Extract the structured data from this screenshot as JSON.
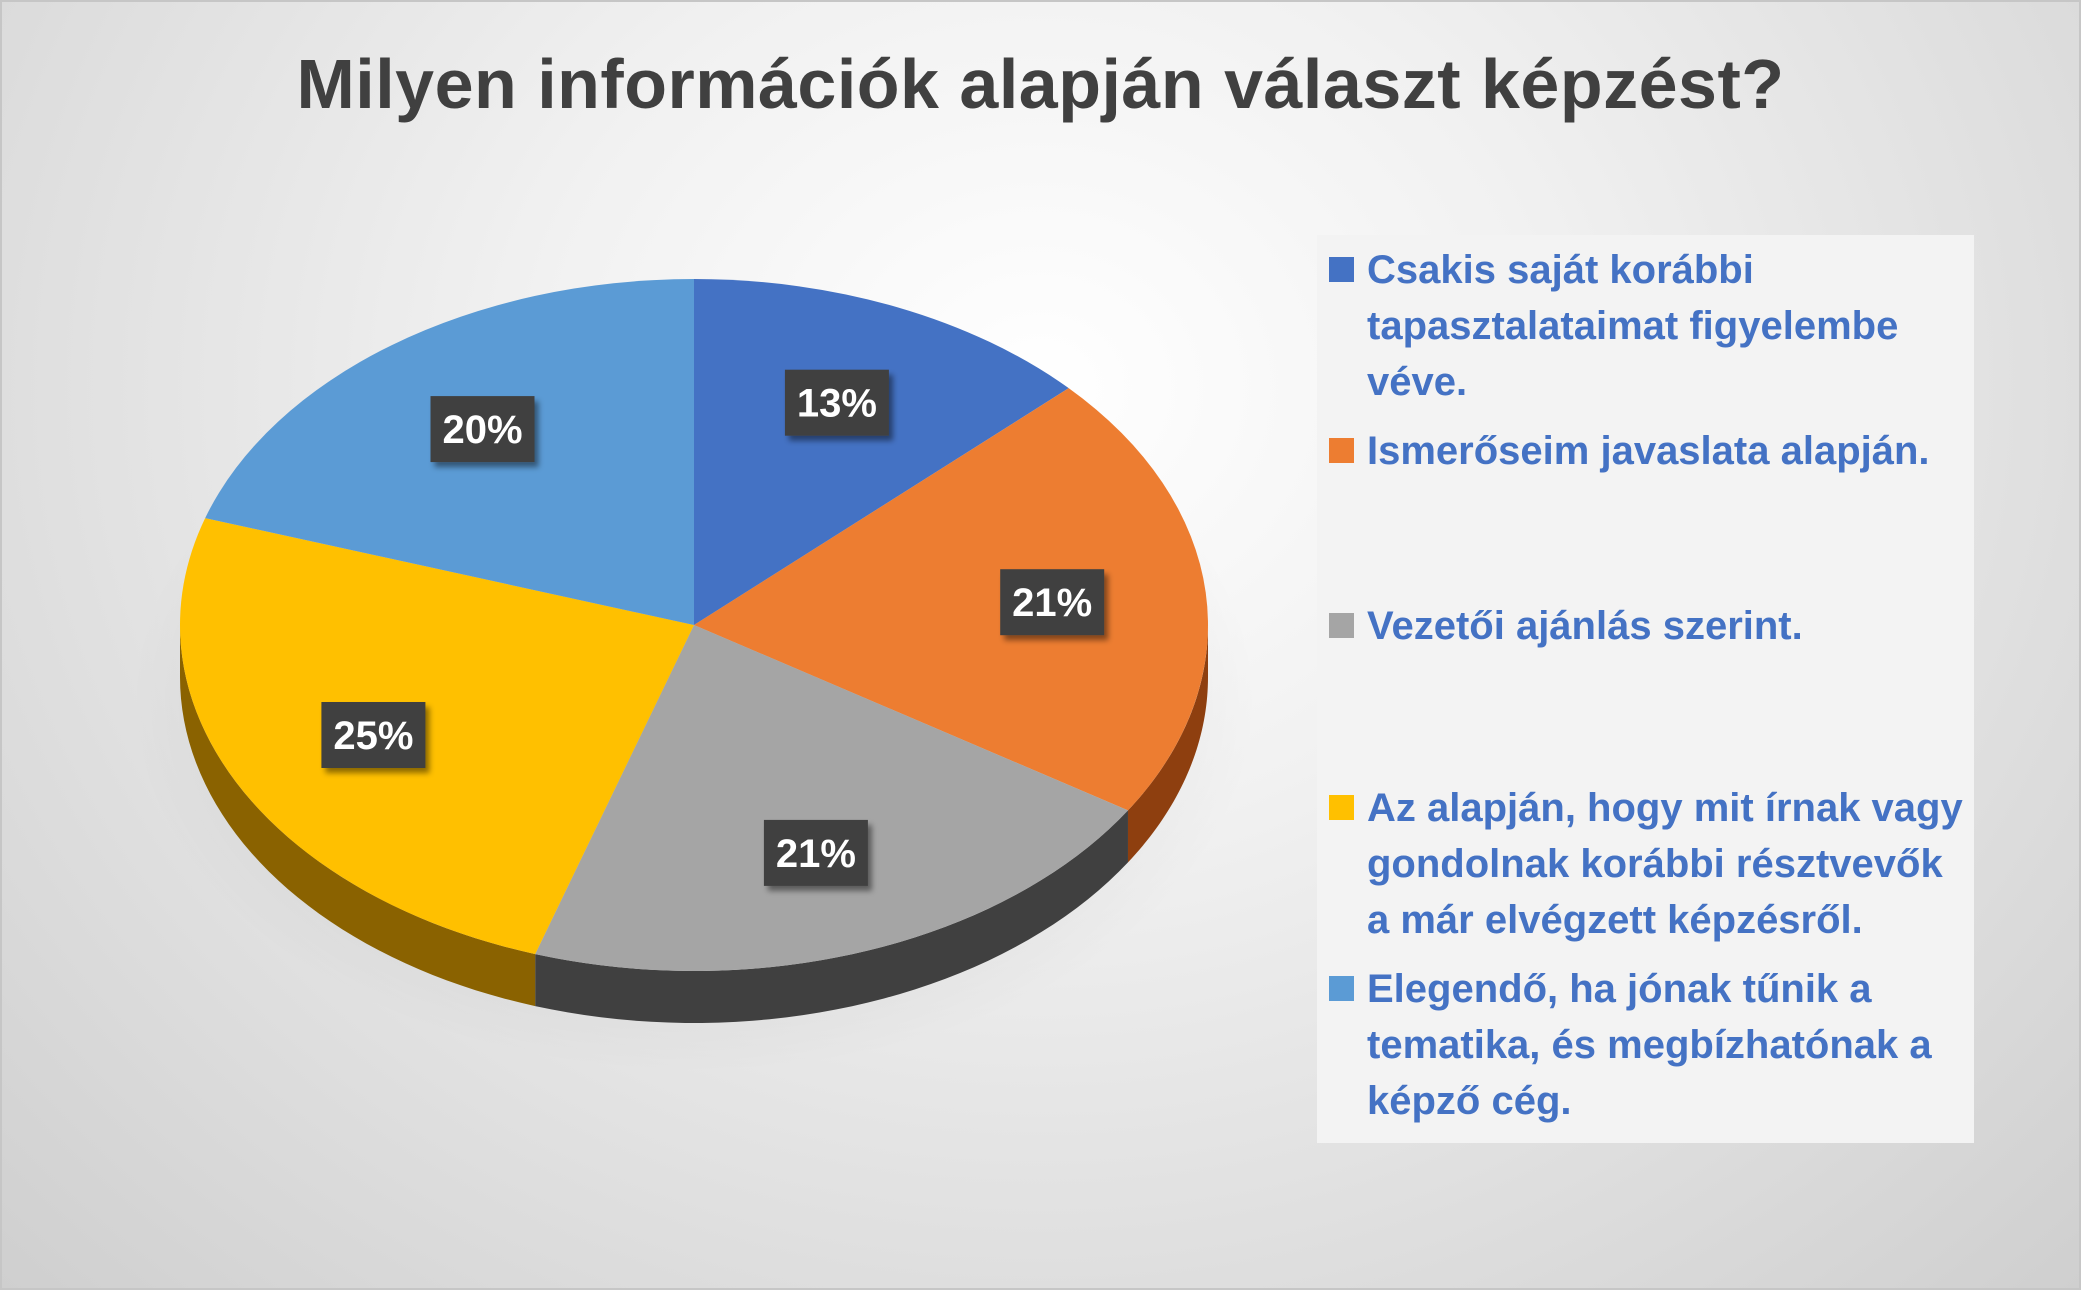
{
  "chart_data": {
    "type": "pie",
    "title": "Milyen információk alapján választ képzést?",
    "slices": [
      {
        "label": "Csakis saját korábbi tapasztalataimat figyelembe véve.",
        "value": 13,
        "value_label": "13%",
        "color": "#4472c4",
        "side_color": "#2e4f8a"
      },
      {
        "label": "Ismerőseim javaslata alapján.",
        "value": 21,
        "value_label": "21%",
        "color": "#ed7d31",
        "side_color": "#8e3f0f"
      },
      {
        "label": "Vezetői ajánlás szerint.",
        "value": 21,
        "value_label": "21%",
        "color": "#a5a5a5",
        "side_color": "#404040"
      },
      {
        "label": "Az alapján, hogy mit írnak vagy gondolnak korábbi résztvevők a már elvégzett képzésről.",
        "value": 25,
        "value_label": "25%",
        "color": "#ffc000",
        "side_color": "#8a6200"
      },
      {
        "label": "Elegendő, ha jónak tűnik a tematika, és megbízhatónak a képző cég.",
        "value": 20,
        "value_label": "20%",
        "color": "#5b9bd5",
        "side_color": "#34618f"
      }
    ],
    "legend_position": "right",
    "legend_text_color": "#4472c4"
  }
}
